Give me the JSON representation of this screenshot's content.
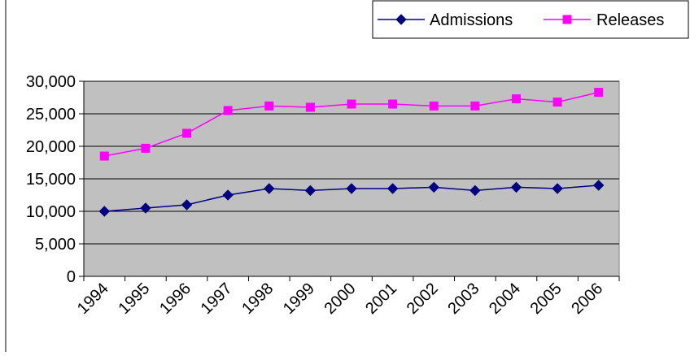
{
  "chart_data": {
    "type": "line",
    "categories": [
      "1994",
      "1995",
      "1996",
      "1997",
      "1998",
      "1999",
      "2000",
      "2001",
      "2002",
      "2003",
      "2004",
      "2005",
      "2006"
    ],
    "series": [
      {
        "name": "Admissions",
        "color": "#000080",
        "marker": "diamond",
        "values": [
          10000,
          10500,
          11000,
          12500,
          13500,
          13200,
          13500,
          13500,
          13700,
          13200,
          13700,
          13500,
          14000
        ]
      },
      {
        "name": "Releases",
        "color": "#FF00FF",
        "marker": "square",
        "values": [
          18500,
          19700,
          22000,
          25500,
          26200,
          26000,
          26500,
          26500,
          26200,
          26200,
          27300,
          26800,
          28300
        ]
      }
    ],
    "y_ticks": [
      "0",
      "5,000",
      "10,000",
      "15,000",
      "20,000",
      "25,000",
      "30,000"
    ],
    "ylim": [
      0,
      30000
    ],
    "y_step": 5000,
    "grid": true,
    "plot_background": "#C0C0C0",
    "legend_position": "top-right"
  }
}
